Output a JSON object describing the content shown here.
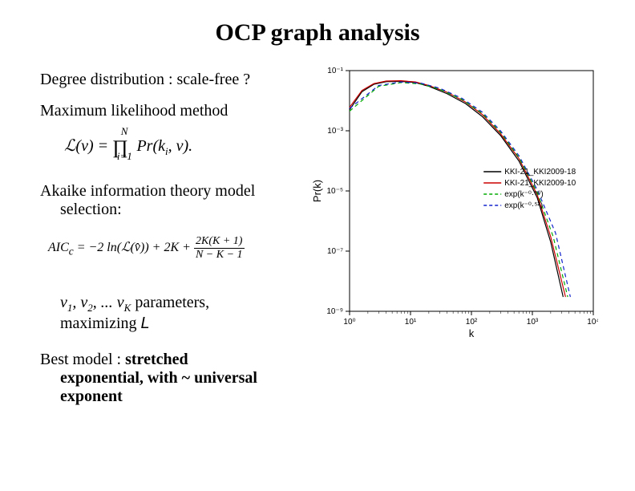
{
  "title": "OCP graph analysis",
  "text": {
    "line1": "Degree distribution : scale-free ?",
    "line2": "Maximum likelihood method",
    "line3a": "Akaike information theory model",
    "line3b": "selection:",
    "params1_prefix": "v",
    "params1_sub1": "1",
    "params1_mid1": ", v",
    "params1_sub2": "2",
    "params1_mid2": ", ... v",
    "params1_subK": "K",
    "params1_suffix": "  parameters,",
    "params2_prefix": "maximizing ",
    "params2_L": "L",
    "best_prefix": "Best model : ",
    "best_bold1": "stretched",
    "best_bold2": "exponential, with  ~ universal",
    "best_bold3": "exponent"
  },
  "formula_likelihood": {
    "lhs": "ℒ(v)",
    "eq": " = ",
    "prod_lower": "i=1",
    "prod_upper": "N",
    "rhs": " Pr(k",
    "rhs_sub": "i",
    "rhs_suffix": ", v)."
  },
  "formula_aic": {
    "lhs": "AIC",
    "lhs_sub": "c",
    "eq": " = −2 ln(ℒ(v̂)) + 2K + ",
    "frac_num": "2K(K + 1)",
    "frac_den": "N − K − 1"
  },
  "chart": {
    "type": "line-loglog",
    "xlabel": "k",
    "ylabel": "Pr(k)",
    "x_ticks": [
      1,
      10,
      100,
      1000,
      10000
    ],
    "x_tick_labels": [
      "10⁰",
      "10¹",
      "10²",
      "10³",
      "10⁴"
    ],
    "y_ticks": [
      1e-09,
      1e-07,
      1e-05,
      0.001,
      0.1
    ],
    "y_tick_labels": [
      "10⁻⁹",
      "10⁻⁷",
      "10⁻⁵",
      "10⁻³",
      "10⁻¹"
    ],
    "xlim": [
      1,
      10000
    ],
    "ylim": [
      1e-09,
      0.1
    ],
    "background_color": "#ffffff",
    "tick_fontsize": 10,
    "label_fontsize": 13,
    "legend": {
      "position": "right-middle",
      "fontsize": 10,
      "items": [
        {
          "label": "KKI-21_KKI2009-18",
          "color": "#000000",
          "dash": "solid"
        },
        {
          "label": "KKI-21_KKI2009-10",
          "color": "#cc0000",
          "dash": "solid"
        },
        {
          "label": "exp(k⁻⁰·⁵⁰)",
          "color": "#00aa00",
          "dash": "dashed"
        },
        {
          "label": "exp(k⁻⁰·⁵²)",
          "color": "#1122cc",
          "dash": "dashed"
        }
      ]
    },
    "series": [
      {
        "name": "KKI-21_KKI2009-18",
        "color": "#000000",
        "dash": "solid",
        "width": 1.2,
        "points": [
          [
            1,
            0.005
          ],
          [
            1.6,
            0.02
          ],
          [
            2.5,
            0.035
          ],
          [
            4,
            0.043
          ],
          [
            7,
            0.044
          ],
          [
            12,
            0.04
          ],
          [
            20,
            0.03
          ],
          [
            40,
            0.017
          ],
          [
            80,
            0.008
          ],
          [
            150,
            0.003
          ],
          [
            300,
            0.0007
          ],
          [
            600,
            0.0001
          ],
          [
            1200,
            6e-06
          ],
          [
            2000,
            2e-07
          ],
          [
            3200,
            3e-09
          ]
        ]
      },
      {
        "name": "KKI-21_KKI2009-10",
        "color": "#cc0000",
        "dash": "solid",
        "width": 1.2,
        "points": [
          [
            1,
            0.006
          ],
          [
            1.6,
            0.022
          ],
          [
            2.5,
            0.037
          ],
          [
            4,
            0.045
          ],
          [
            7,
            0.046
          ],
          [
            12,
            0.042
          ],
          [
            20,
            0.032
          ],
          [
            40,
            0.019
          ],
          [
            80,
            0.009
          ],
          [
            150,
            0.0035
          ],
          [
            300,
            0.0008
          ],
          [
            600,
            0.00012
          ],
          [
            1200,
            7.5e-06
          ],
          [
            2000,
            3e-07
          ],
          [
            3500,
            3e-09
          ]
        ]
      },
      {
        "name": "exp(k^-0.50)",
        "color": "#00aa00",
        "dash": "dashed",
        "width": 1.2,
        "points": [
          [
            1,
            0.0045
          ],
          [
            3,
            0.03
          ],
          [
            7,
            0.04
          ],
          [
            15,
            0.036
          ],
          [
            30,
            0.024
          ],
          [
            70,
            0.011
          ],
          [
            150,
            0.0038
          ],
          [
            300,
            0.0009
          ],
          [
            600,
            0.00013
          ],
          [
            1200,
            9e-06
          ],
          [
            2200,
            3e-07
          ],
          [
            3800,
            3e-09
          ]
        ]
      },
      {
        "name": "exp(k^-0.52)",
        "color": "#1122cc",
        "dash": "dashed",
        "width": 1.2,
        "points": [
          [
            1,
            0.0055
          ],
          [
            3,
            0.032
          ],
          [
            7,
            0.042
          ],
          [
            15,
            0.038
          ],
          [
            30,
            0.026
          ],
          [
            70,
            0.012
          ],
          [
            150,
            0.0042
          ],
          [
            300,
            0.001
          ],
          [
            600,
            0.00015
          ],
          [
            1200,
            1.1e-05
          ],
          [
            2400,
            4e-07
          ],
          [
            4200,
            3e-09
          ]
        ]
      }
    ]
  }
}
